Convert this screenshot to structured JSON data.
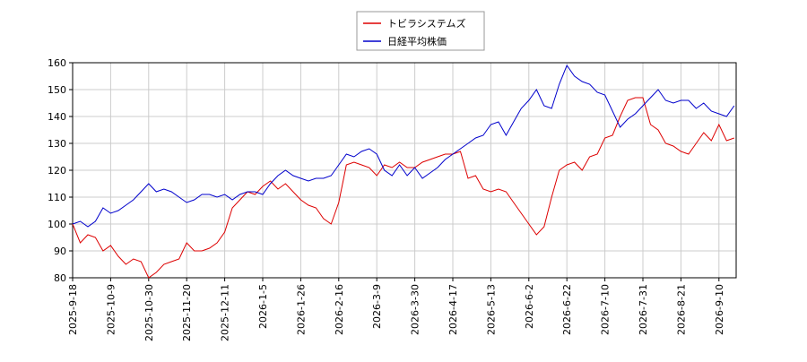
{
  "chart_data": {
    "type": "line",
    "categories": [
      "2025-9-18",
      null,
      null,
      null,
      null,
      "2025-10-9",
      null,
      null,
      null,
      null,
      "2025-10-30",
      null,
      null,
      null,
      null,
      "2025-11-20",
      null,
      null,
      null,
      null,
      "2025-12-11",
      null,
      null,
      null,
      null,
      "2026-1-5",
      null,
      null,
      null,
      null,
      "2026-1-26",
      null,
      null,
      null,
      null,
      "2026-2-16",
      null,
      null,
      null,
      null,
      "2026-3-9",
      null,
      null,
      null,
      null,
      "2026-3-30",
      null,
      null,
      null,
      null,
      "2026-4-17",
      null,
      null,
      null,
      null,
      "2026-5-13",
      null,
      null,
      null,
      null,
      "2026-6-2",
      null,
      null,
      null,
      null,
      "2026-6-22",
      null,
      null,
      null,
      null,
      "2026-7-10",
      null,
      null,
      null,
      null,
      "2026-7-31",
      null,
      null,
      null,
      null,
      "2026-8-21",
      null,
      null,
      null,
      null,
      "2026-9-10",
      null,
      null
    ],
    "series": [
      {
        "name": "トビラシステムズ",
        "color": "#dd0000",
        "values": [
          100,
          93,
          96,
          95,
          90,
          92,
          88,
          85,
          87,
          86,
          80,
          82,
          85,
          86,
          87,
          93,
          90,
          90,
          91,
          93,
          97,
          106,
          109,
          112,
          111,
          114,
          116,
          113,
          115,
          112,
          109,
          107,
          106,
          102,
          100,
          108,
          122,
          123,
          122,
          121,
          118,
          122,
          121,
          123,
          121,
          121,
          123,
          124,
          125,
          126,
          126,
          127,
          117,
          118,
          113,
          112,
          113,
          112,
          108,
          104,
          100,
          96,
          99,
          110,
          120,
          122,
          123,
          120,
          125,
          126,
          132,
          133,
          140,
          146,
          147,
          147,
          137,
          135,
          130,
          129,
          127,
          126,
          130,
          134,
          131,
          137,
          131,
          132
        ]
      },
      {
        "name": "日経平均株価",
        "color": "#0000cc",
        "values": [
          100,
          101,
          99,
          101,
          106,
          104,
          105,
          107,
          109,
          112,
          115,
          112,
          113,
          112,
          110,
          108,
          109,
          111,
          111,
          110,
          111,
          109,
          111,
          112,
          112,
          111,
          115,
          118,
          120,
          118,
          117,
          116,
          117,
          117,
          118,
          122,
          126,
          125,
          127,
          128,
          126,
          120,
          118,
          122,
          118,
          121,
          117,
          119,
          121,
          124,
          126,
          128,
          130,
          132,
          133,
          137,
          138,
          133,
          138,
          143,
          146,
          150,
          144,
          143,
          152,
          159,
          155,
          153,
          152,
          149,
          148,
          142,
          136,
          139,
          141,
          144,
          147,
          150,
          146,
          145,
          146,
          146,
          143,
          145,
          142,
          141,
          140,
          144
        ]
      }
    ],
    "ylim": [
      80,
      160
    ],
    "yticks": [
      80,
      90,
      100,
      110,
      120,
      130,
      140,
      150,
      160
    ],
    "grid": true
  }
}
